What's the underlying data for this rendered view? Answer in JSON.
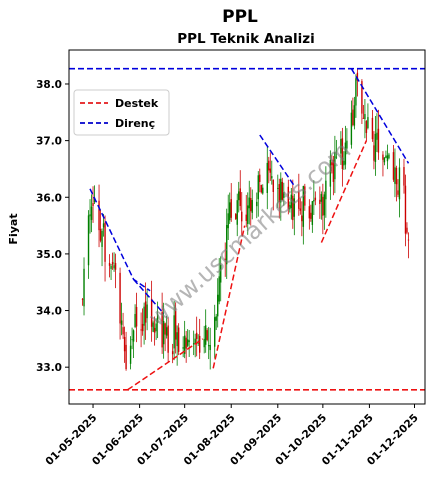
{
  "chart_data": {
    "type": "candlestick",
    "title": "PPL",
    "subtitle": "PPL Teknik Analizi",
    "xlabel": "",
    "ylabel": "Fiyat",
    "ylim": [
      32.35,
      38.6
    ],
    "xlim_days": [
      "2025-04-15",
      "2025-12-08"
    ],
    "x_tick_labels": [
      "01-05-2025",
      "01-06-2025",
      "01-07-2025",
      "01-08-2025",
      "01-09-2025",
      "01-10-2025",
      "01-11-2025",
      "01-12-2025"
    ],
    "x_tick_dates": [
      "2025-05-01",
      "2025-06-01",
      "2025-07-01",
      "2025-08-01",
      "2025-09-01",
      "2025-10-01",
      "2025-11-01",
      "2025-12-01"
    ],
    "y_ticks": [
      33.0,
      34.0,
      35.0,
      36.0,
      37.0,
      38.0
    ],
    "y_tick_labels": [
      "33.0",
      "34.0",
      "35.0",
      "36.0",
      "37.0",
      "38.0"
    ],
    "watermark": "www.uscmarkets.com",
    "legend": {
      "position": "upper-left",
      "entries": [
        {
          "label": "Destek",
          "color": "#e41a1c",
          "style": "dashed"
        },
        {
          "label": "Direnç",
          "color": "#0000cc",
          "style": "dashed"
        }
      ]
    },
    "colors": {
      "up": "#008000",
      "down": "#cc0000",
      "support": "#ee1111",
      "resistance": "#0000dd"
    },
    "horizontal_lines": [
      {
        "kind": "support",
        "y": 32.6
      },
      {
        "kind": "resistance",
        "y": 38.27
      }
    ],
    "trend_lines": [
      {
        "kind": "resistance",
        "points": [
          [
            "2025-04-29",
            36.15
          ],
          [
            "2025-05-28",
            34.55
          ],
          [
            "2025-06-08",
            34.35
          ]
        ]
      },
      {
        "kind": "resistance",
        "points": [
          [
            "2025-05-28",
            34.55
          ],
          [
            "2025-06-17",
            33.95
          ]
        ]
      },
      {
        "kind": "resistance",
        "points": [
          [
            "2025-08-20",
            37.1
          ],
          [
            "2025-09-12",
            36.2
          ]
        ]
      },
      {
        "kind": "resistance",
        "points": [
          [
            "2025-10-20",
            38.27
          ],
          [
            "2025-11-27",
            36.6
          ]
        ]
      },
      {
        "kind": "support",
        "points": [
          [
            "2025-05-24",
            32.6
          ],
          [
            "2025-07-13",
            33.5
          ]
        ]
      },
      {
        "kind": "support",
        "points": [
          [
            "2025-07-20",
            32.98
          ],
          [
            "2025-08-10",
            35.5
          ]
        ]
      },
      {
        "kind": "support",
        "points": [
          [
            "2025-09-30",
            35.2
          ],
          [
            "2025-10-30",
            37.0
          ]
        ]
      }
    ],
    "close_path": [
      [
        "2025-04-24",
        34.3
      ],
      [
        "2025-04-28",
        36.0
      ],
      [
        "2025-05-05",
        35.6
      ],
      [
        "2025-05-12",
        34.9
      ],
      [
        "2025-05-19",
        34.0
      ],
      [
        "2025-05-24",
        33.1
      ],
      [
        "2025-05-28",
        33.6
      ],
      [
        "2025-06-05",
        34.0
      ],
      [
        "2025-06-12",
        33.8
      ],
      [
        "2025-06-18",
        33.5
      ],
      [
        "2025-06-25",
        33.6
      ],
      [
        "2025-07-02",
        33.3
      ],
      [
        "2025-07-10",
        33.4
      ],
      [
        "2025-07-15",
        33.6
      ],
      [
        "2025-07-20",
        33.5
      ],
      [
        "2025-07-25",
        34.5
      ],
      [
        "2025-07-30",
        35.6
      ],
      [
        "2025-08-05",
        35.9
      ],
      [
        "2025-08-12",
        35.6
      ],
      [
        "2025-08-20",
        36.4
      ],
      [
        "2025-08-28",
        36.3
      ],
      [
        "2025-09-05",
        36.1
      ],
      [
        "2025-09-12",
        35.8
      ],
      [
        "2025-09-20",
        36.0
      ],
      [
        "2025-09-28",
        35.5
      ],
      [
        "2025-10-05",
        36.4
      ],
      [
        "2025-10-12",
        36.6
      ],
      [
        "2025-10-18",
        37.3
      ],
      [
        "2025-10-24",
        37.9
      ],
      [
        "2025-10-30",
        37.1
      ],
      [
        "2025-11-05",
        36.9
      ],
      [
        "2025-11-12",
        36.5
      ],
      [
        "2025-11-18",
        36.6
      ],
      [
        "2025-11-24",
        35.9
      ],
      [
        "2025-11-27",
        35.3
      ]
    ]
  }
}
